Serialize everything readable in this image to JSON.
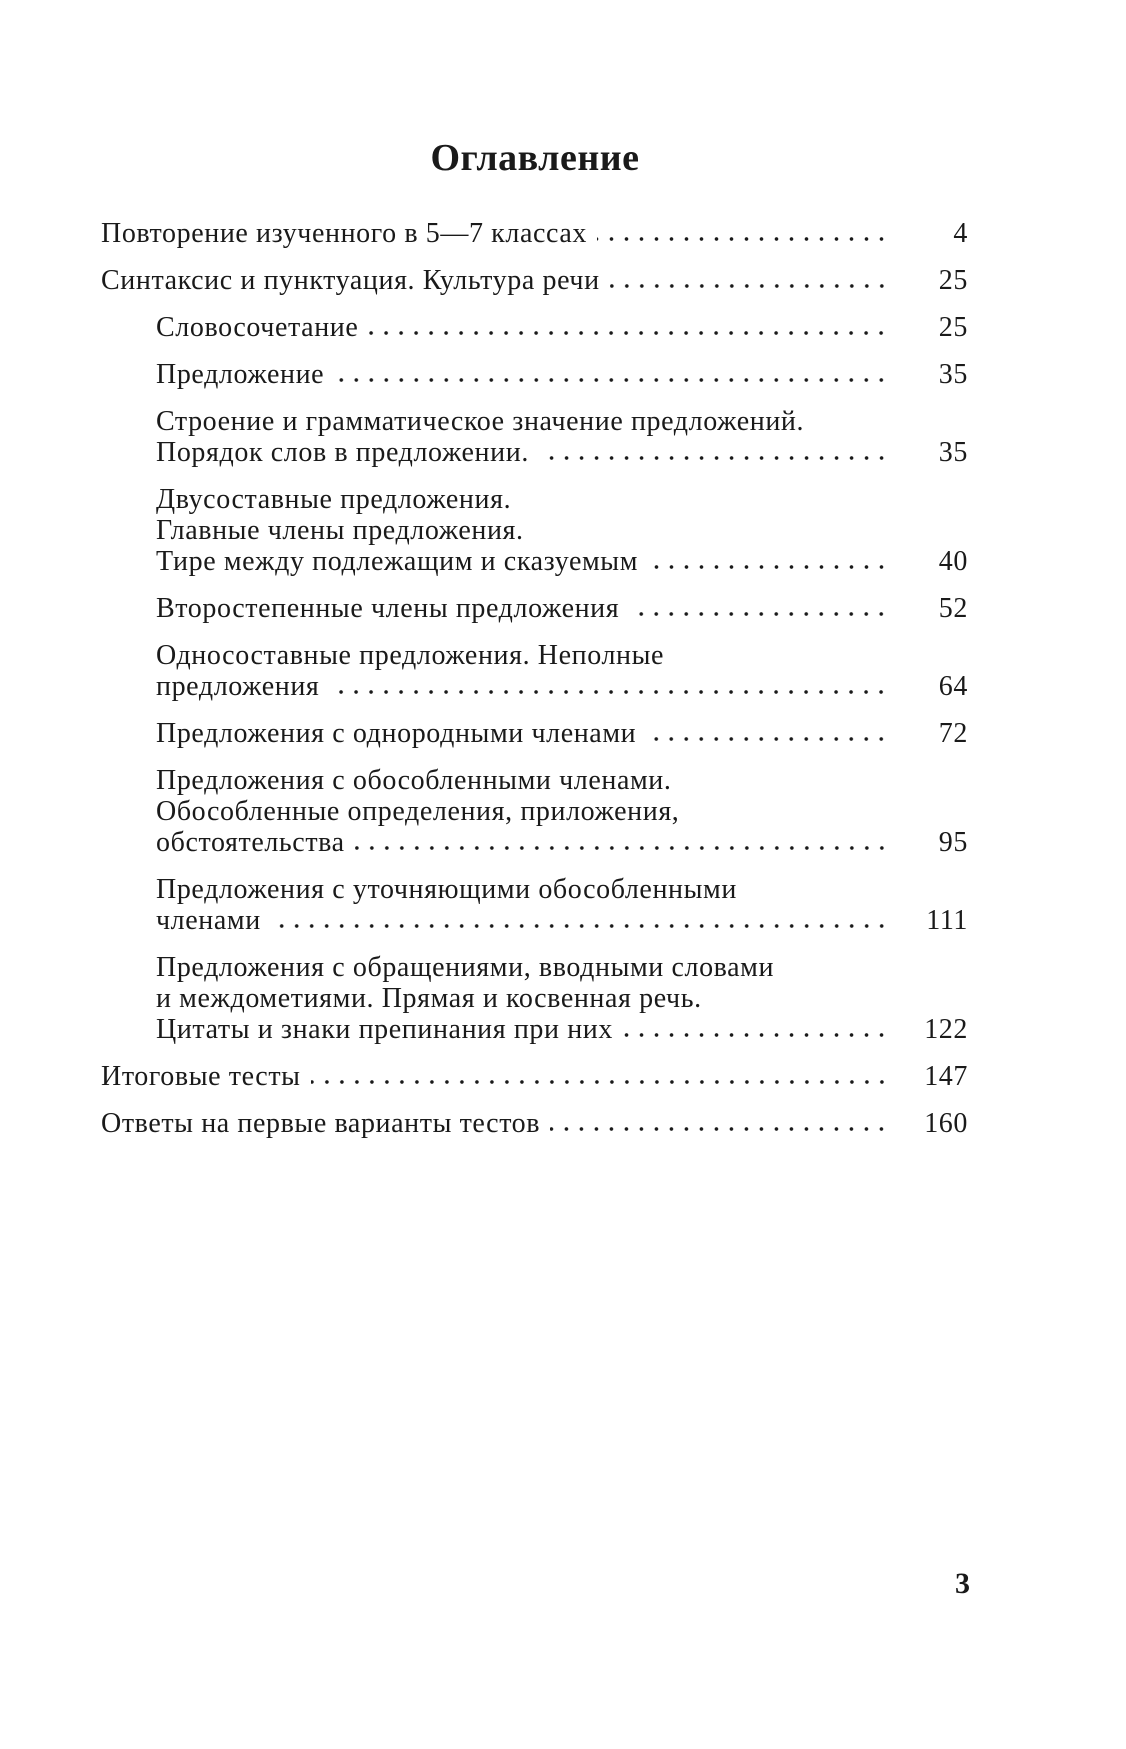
{
  "title": "Оглавление",
  "entries": [
    {
      "level": 1,
      "lines": [
        "Повторение изученного в 5—7 классах"
      ],
      "page": "4"
    },
    {
      "level": 1,
      "lines": [
        "Синтаксис и пунктуация. Культура речи"
      ],
      "page": "25"
    },
    {
      "level": 2,
      "lines": [
        "Словосочетание"
      ],
      "page": "25"
    },
    {
      "level": 2,
      "lines": [
        "Предложение"
      ],
      "page": "35"
    },
    {
      "level": 2,
      "lines": [
        "Строение и грамматическое значение предложений.",
        "Порядок слов в предложении."
      ],
      "page": "35"
    },
    {
      "level": 2,
      "lines": [
        "Двусоставные предложения.",
        "Главные члены предложения.",
        "Тире между подлежащим и сказуемым"
      ],
      "page": "40"
    },
    {
      "level": 2,
      "lines": [
        "Второстепенные члены предложения"
      ],
      "page": "52"
    },
    {
      "level": 2,
      "lines": [
        "Односоставные предложения. Неполные",
        "предложения"
      ],
      "page": "64"
    },
    {
      "level": 2,
      "lines": [
        "Предложения с однородными членами"
      ],
      "page": "72"
    },
    {
      "level": 2,
      "lines": [
        "Предложения с обособленными членами.",
        "Обособленные определения, приложения,",
        "обстоятельства"
      ],
      "page": "95"
    },
    {
      "level": 2,
      "lines": [
        "Предложения с уточняющими обособленными",
        "членами"
      ],
      "page": "111"
    },
    {
      "level": 2,
      "lines": [
        "Предложения с обращениями, вводными словами",
        "и междометиями. Прямая и косвенная речь.",
        "Цитаты и знаки препинания при них"
      ],
      "page": "122"
    },
    {
      "level": 1,
      "lines": [
        "Итоговые тесты"
      ],
      "page": "147"
    },
    {
      "level": 1,
      "lines": [
        "Ответы на первые варианты тестов"
      ],
      "page": "160"
    }
  ],
  "page_number": "3"
}
